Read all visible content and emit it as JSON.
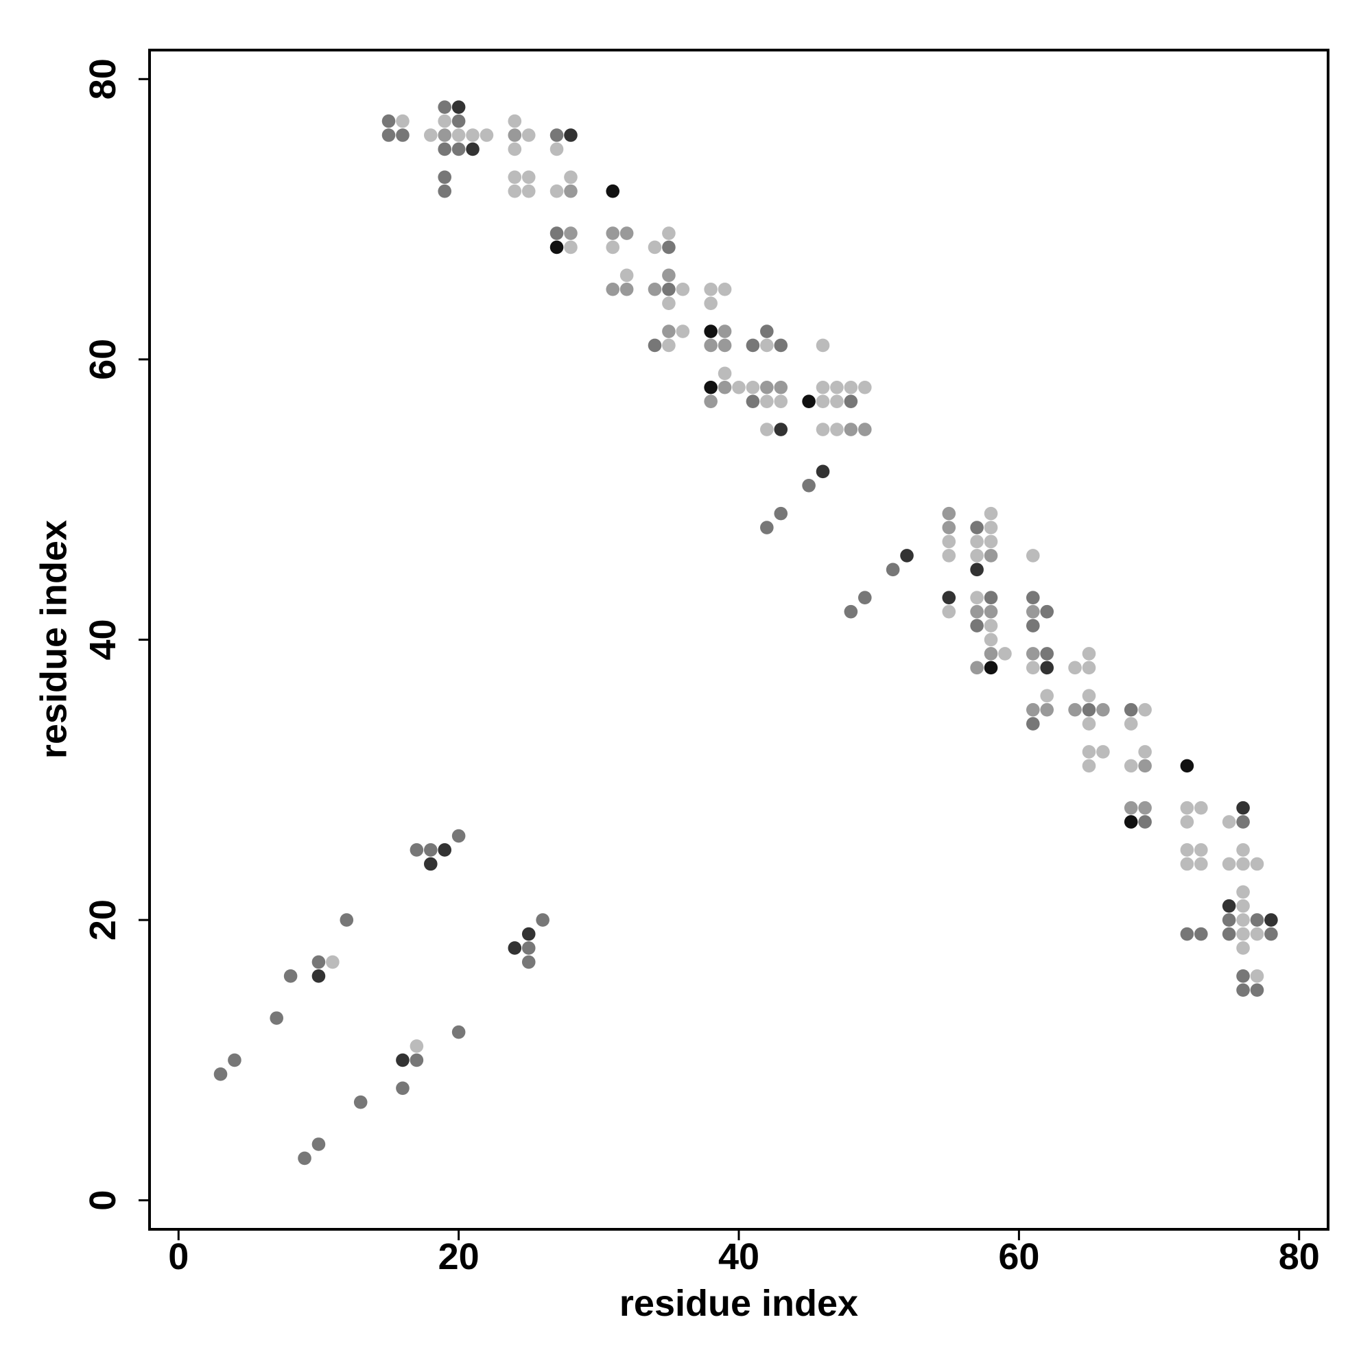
{
  "chart_data": {
    "type": "scatter",
    "x_label": "residue index",
    "y_label": "residue index",
    "xlim": [
      -2.07,
      82.07
    ],
    "ylim": [
      -2.07,
      82.07
    ],
    "xticks": [
      0,
      20,
      40,
      60,
      80
    ],
    "yticks": [
      0,
      20,
      40,
      60,
      80
    ],
    "series": [
      {
        "color": "#111111",
        "x": [
          31,
          27,
          38,
          38,
          45,
          58,
          72,
          68
        ],
        "values": [
          72,
          68,
          62,
          58,
          57,
          38,
          31,
          27
        ]
      },
      {
        "color": "#333333",
        "x": [
          20,
          28,
          21,
          43,
          46,
          52,
          57,
          55,
          62,
          76,
          19,
          18,
          75,
          78,
          25,
          24,
          10,
          16
        ],
        "values": [
          78,
          76,
          75,
          55,
          52,
          46,
          45,
          43,
          38,
          28,
          25,
          24,
          21,
          20,
          19,
          18,
          16,
          10
        ]
      },
      {
        "color": "#777777",
        "x": [
          19,
          15,
          20,
          15,
          16,
          27,
          19,
          20,
          19,
          19,
          27,
          35,
          35,
          42,
          34,
          41,
          43,
          41,
          48,
          45,
          43,
          42,
          57,
          51,
          49,
          58,
          61,
          48,
          62,
          57,
          61,
          62,
          65,
          68,
          61,
          69,
          76,
          20,
          17,
          18,
          12,
          26,
          75,
          77,
          72,
          73,
          75,
          78,
          25,
          10,
          25,
          8,
          76,
          76,
          77,
          7,
          20,
          4,
          17,
          3,
          16,
          13,
          10,
          9
        ],
        "values": [
          78,
          77,
          77,
          76,
          76,
          76,
          75,
          75,
          73,
          72,
          69,
          68,
          65,
          62,
          61,
          61,
          61,
          57,
          57,
          51,
          49,
          48,
          48,
          45,
          43,
          43,
          43,
          42,
          42,
          41,
          41,
          39,
          35,
          35,
          34,
          27,
          27,
          26,
          25,
          25,
          20,
          20,
          20,
          20,
          19,
          19,
          19,
          19,
          18,
          17,
          17,
          16,
          16,
          15,
          15,
          13,
          12,
          10,
          10,
          9,
          8,
          7,
          4,
          3
        ]
      },
      {
        "color": "#999999",
        "x": [
          19,
          24,
          28,
          28,
          31,
          32,
          35,
          31,
          32,
          34,
          35,
          39,
          38,
          39,
          39,
          42,
          43,
          38,
          48,
          49,
          55,
          55,
          58,
          57,
          58,
          61,
          58,
          61,
          57,
          61,
          62,
          64,
          66,
          69,
          68,
          69
        ],
        "values": [
          76,
          76,
          72,
          69,
          69,
          69,
          66,
          65,
          65,
          65,
          62,
          62,
          61,
          61,
          58,
          58,
          58,
          57,
          55,
          55,
          49,
          48,
          46,
          42,
          42,
          42,
          39,
          39,
          38,
          35,
          35,
          35,
          35,
          31,
          28,
          28
        ]
      },
      {
        "color": "#bbbbbb",
        "x": [
          16,
          19,
          24,
          18,
          20,
          21,
          22,
          25,
          24,
          27,
          24,
          25,
          28,
          24,
          25,
          27,
          35,
          28,
          31,
          34,
          32,
          36,
          38,
          39,
          35,
          38,
          36,
          35,
          42,
          46,
          39,
          40,
          41,
          46,
          47,
          48,
          49,
          42,
          43,
          46,
          47,
          42,
          46,
          47,
          58,
          58,
          55,
          57,
          58,
          55,
          57,
          61,
          57,
          55,
          58,
          58,
          59,
          65,
          61,
          64,
          65,
          62,
          65,
          69,
          65,
          68,
          65,
          66,
          69,
          65,
          68,
          72,
          73,
          72,
          75,
          72,
          73,
          76,
          72,
          73,
          75,
          76,
          77,
          76,
          76,
          76,
          76,
          77,
          76,
          11,
          77,
          17
        ],
        "values": [
          77,
          77,
          77,
          76,
          76,
          76,
          76,
          76,
          75,
          75,
          73,
          73,
          73,
          72,
          72,
          72,
          69,
          68,
          68,
          68,
          66,
          65,
          65,
          65,
          64,
          64,
          62,
          61,
          61,
          61,
          59,
          58,
          58,
          58,
          58,
          58,
          58,
          57,
          57,
          57,
          57,
          55,
          55,
          55,
          49,
          48,
          47,
          47,
          47,
          46,
          46,
          46,
          43,
          42,
          41,
          40,
          39,
          39,
          38,
          38,
          38,
          36,
          36,
          35,
          34,
          34,
          32,
          32,
          32,
          31,
          31,
          28,
          28,
          27,
          27,
          25,
          25,
          25,
          24,
          24,
          24,
          24,
          24,
          22,
          21,
          20,
          19,
          19,
          18,
          17,
          16,
          11
        ]
      }
    ]
  }
}
